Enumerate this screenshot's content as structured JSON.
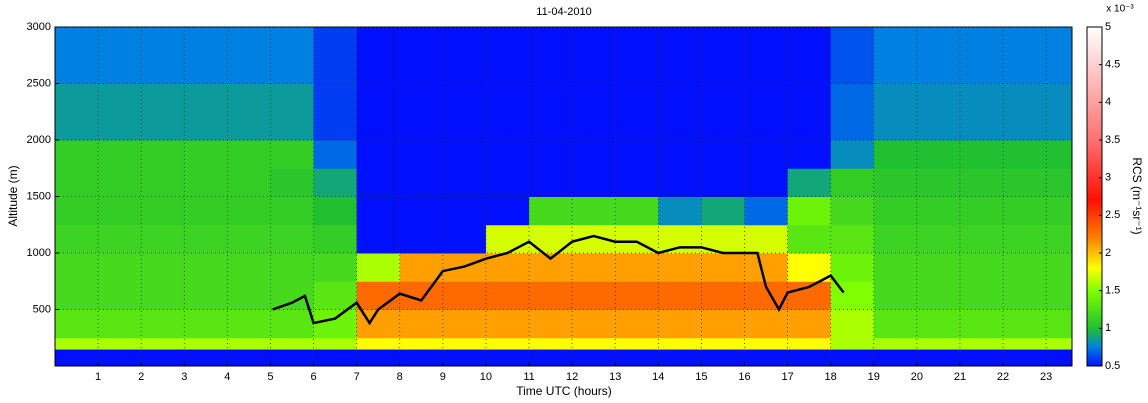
{
  "chart_data": {
    "type": "heatmap",
    "title": "11-04-2010",
    "x_label": "Time UTC (hours)",
    "y_label": "Altitude (m)",
    "xlim": [
      0,
      23.6
    ],
    "ylim": [
      0,
      3000
    ],
    "xticks": [
      1,
      2,
      3,
      4,
      5,
      6,
      7,
      8,
      9,
      10,
      11,
      12,
      13,
      14,
      15,
      16,
      17,
      18,
      19,
      20,
      21,
      22,
      23
    ],
    "yticks": [
      500,
      1000,
      1500,
      2000,
      2500,
      3000
    ],
    "grid": true,
    "x_edges": [
      0,
      1,
      2,
      3,
      4,
      5,
      6,
      7,
      8,
      9,
      10,
      11,
      12,
      13,
      14,
      15,
      16,
      17,
      18,
      19,
      20,
      21,
      22,
      23,
      23.6
    ],
    "y_edges": [
      0,
      150,
      250,
      500,
      750,
      1000,
      1250,
      1500,
      1750,
      2000,
      2500,
      3000
    ],
    "values": [
      [
        0.5,
        0.5,
        0.5,
        0.5,
        0.5,
        0.5,
        0.5,
        0.5,
        0.5,
        0.5,
        0.5,
        0.5,
        0.5,
        0.5,
        0.5,
        0.5,
        0.5,
        0.5,
        0.5,
        0.5,
        0.5,
        0.5,
        0.5,
        0.5
      ],
      [
        1.6,
        1.6,
        1.6,
        1.6,
        1.6,
        1.6,
        1.6,
        1.8,
        1.8,
        1.8,
        1.8,
        1.8,
        1.8,
        1.8,
        1.8,
        1.8,
        1.8,
        1.8,
        1.6,
        1.6,
        1.6,
        1.6,
        1.6,
        1.6
      ],
      [
        1.3,
        1.3,
        1.3,
        1.3,
        1.3,
        1.3,
        1.4,
        2.1,
        2.1,
        2.1,
        2.1,
        2.1,
        2.1,
        2.1,
        2.1,
        2.1,
        2.1,
        2.1,
        1.6,
        1.3,
        1.3,
        1.3,
        1.3,
        1.3
      ],
      [
        1.2,
        1.2,
        1.2,
        1.2,
        1.2,
        1.2,
        1.3,
        2.3,
        2.3,
        2.3,
        2.3,
        2.3,
        2.3,
        2.3,
        2.3,
        2.3,
        2.3,
        2.3,
        1.5,
        1.2,
        1.2,
        1.2,
        1.2,
        1.2
      ],
      [
        1.2,
        1.2,
        1.2,
        1.2,
        1.2,
        1.2,
        1.2,
        1.6,
        2.1,
        2.1,
        2.1,
        2.1,
        2.1,
        2.1,
        2.1,
        2.1,
        2.1,
        1.8,
        1.4,
        1.2,
        1.2,
        1.2,
        1.2,
        1.2
      ],
      [
        1.15,
        1.15,
        1.15,
        1.15,
        1.15,
        1.15,
        1.1,
        0.5,
        0.5,
        0.5,
        1.7,
        1.7,
        1.7,
        1.7,
        1.7,
        1.7,
        1.7,
        1.3,
        1.3,
        1.15,
        1.15,
        1.15,
        1.15,
        1.15
      ],
      [
        1.1,
        1.1,
        1.1,
        1.1,
        1.1,
        1.1,
        1.0,
        0.5,
        0.5,
        0.5,
        0.5,
        1.2,
        1.2,
        1.2,
        0.8,
        0.9,
        0.7,
        1.4,
        1.2,
        1.1,
        1.1,
        1.1,
        1.1,
        1.1
      ],
      [
        1.1,
        1.1,
        1.1,
        1.1,
        1.1,
        1.05,
        0.9,
        0.5,
        0.5,
        0.5,
        0.5,
        0.5,
        0.5,
        0.5,
        0.5,
        0.5,
        0.5,
        0.9,
        1.1,
        1.05,
        1.05,
        1.05,
        1.05,
        1.05
      ],
      [
        1.1,
        1.1,
        1.1,
        1.1,
        1.1,
        1.1,
        0.7,
        0.5,
        0.5,
        0.5,
        0.5,
        0.5,
        0.5,
        0.5,
        0.5,
        0.5,
        0.5,
        0.5,
        0.8,
        1.0,
        1.0,
        1.0,
        1.0,
        1.0
      ],
      [
        0.85,
        0.85,
        0.85,
        0.85,
        0.85,
        0.85,
        0.6,
        0.5,
        0.5,
        0.5,
        0.5,
        0.5,
        0.5,
        0.5,
        0.5,
        0.5,
        0.5,
        0.5,
        0.7,
        0.8,
        0.8,
        0.8,
        0.8,
        0.8
      ],
      [
        0.75,
        0.75,
        0.75,
        0.75,
        0.75,
        0.75,
        0.6,
        0.5,
        0.5,
        0.5,
        0.5,
        0.5,
        0.5,
        0.5,
        0.5,
        0.5,
        0.5,
        0.5,
        0.65,
        0.75,
        0.75,
        0.75,
        0.75,
        0.75
      ]
    ],
    "colormap": [
      {
        "value": 0.5,
        "color": "#0010ff"
      },
      {
        "value": 0.75,
        "color": "#0080e0"
      },
      {
        "value": 1.0,
        "color": "#20c030"
      },
      {
        "value": 1.5,
        "color": "#80ff00"
      },
      {
        "value": 1.8,
        "color": "#ffff00"
      },
      {
        "value": 2.2,
        "color": "#ff8000"
      },
      {
        "value": 2.7,
        "color": "#ff1000"
      },
      {
        "value": 3.5,
        "color": "#ff7070"
      },
      {
        "value": 5,
        "color": "#ffffff"
      }
    ],
    "colorbar_label": "RCS (m⁻¹sr⁻¹)",
    "colorbar_exponent": "x 10⁻³",
    "clim": [
      0.5,
      5
    ],
    "cticks": [
      0.5,
      1,
      1.5,
      2,
      2.5,
      3,
      3.5,
      4,
      4.5,
      5
    ],
    "line": {
      "color": "#000000",
      "x": [
        5.05,
        5.5,
        5.8,
        6.0,
        6.5,
        7.0,
        7.3,
        7.5,
        8.0,
        8.5,
        9.0,
        9.5,
        10.0,
        10.5,
        11.0,
        11.5,
        12.0,
        12.5,
        13.0,
        13.5,
        14.0,
        14.5,
        15.0,
        15.5,
        16.0,
        16.3,
        16.5,
        16.8,
        17.0,
        17.5,
        18.0,
        18.3
      ],
      "values": [
        500,
        560,
        620,
        380,
        420,
        560,
        380,
        500,
        640,
        580,
        840,
        880,
        950,
        1000,
        1100,
        950,
        1100,
        1150,
        1100,
        1100,
        1000,
        1050,
        1050,
        1000,
        1000,
        1000,
        700,
        500,
        650,
        700,
        800,
        650
      ]
    }
  }
}
